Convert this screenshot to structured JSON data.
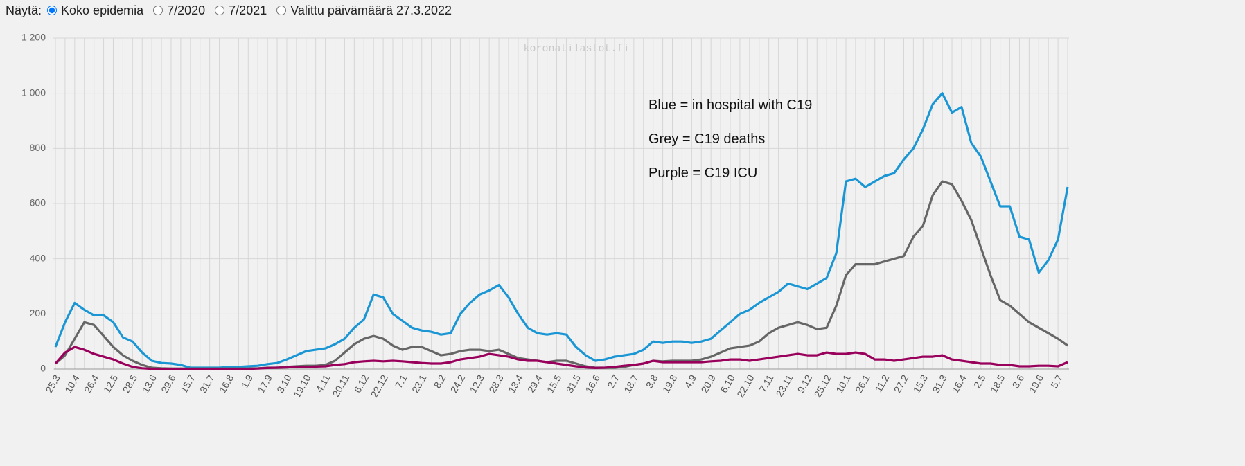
{
  "controls": {
    "label": "Näytä:",
    "options": [
      "Koko epidemia",
      "7/2020",
      "7/2021",
      "Valittu päivämäärä 27.3.2022"
    ],
    "selected": 0
  },
  "chart_data": {
    "type": "line",
    "watermark": "koronatilastot.fi",
    "annotations": [
      "Blue = in hospital with C19",
      "Grey = C19 deaths",
      "Purple = C19 ICU"
    ],
    "categories": [
      "25.3",
      null,
      "10.4",
      null,
      "26.4",
      null,
      "12.5",
      null,
      "28.5",
      null,
      "13.6",
      null,
      "29.6",
      null,
      "15.7",
      null,
      "31.7",
      null,
      "16.8",
      null,
      "1.9",
      null,
      "17.9",
      null,
      "3.10",
      null,
      "19.10",
      null,
      "4.11",
      null,
      "20.11",
      null,
      "6.12",
      null,
      "22.12",
      null,
      "7.1",
      null,
      "23.1",
      null,
      "8.2",
      null,
      "24.2",
      null,
      "12.3",
      null,
      "28.3",
      null,
      "13.4",
      null,
      "29.4",
      null,
      "15.5",
      null,
      "31.5",
      null,
      "16.6",
      null,
      "2.7",
      null,
      "18.7",
      null,
      "3.8",
      null,
      "19.8",
      null,
      "4.9",
      null,
      "20.9",
      null,
      "6.10",
      null,
      "22.10",
      null,
      "7.11",
      null,
      "23.11",
      null,
      "9.12",
      null,
      "25.12",
      null,
      "10.1",
      null,
      "26.1",
      null,
      "11.2",
      null,
      "27.2",
      null,
      "15.3",
      null,
      "31.3",
      null,
      "16.4",
      null,
      "2.5",
      null,
      "18.5",
      null,
      "3.6",
      null,
      "19.6",
      null,
      "5.7",
      null
    ],
    "series": [
      {
        "color": "#1a96d4",
        "values": [
          80,
          170,
          240,
          215,
          195,
          195,
          170,
          115,
          100,
          60,
          30,
          22,
          20,
          15,
          5,
          5,
          5,
          5,
          8,
          8,
          10,
          12,
          18,
          22,
          35,
          50,
          65,
          70,
          75,
          90,
          110,
          150,
          180,
          270,
          260,
          200,
          175,
          150,
          140,
          135,
          125,
          130,
          200,
          240,
          270,
          285,
          305,
          260,
          200,
          150,
          130,
          125,
          130,
          125,
          80,
          50,
          30,
          35,
          45,
          50,
          55,
          70,
          100,
          95,
          100,
          100,
          95,
          100,
          110,
          140,
          170,
          200,
          215,
          240,
          260,
          280,
          310,
          300,
          290,
          310,
          330,
          420,
          680,
          690,
          660,
          680,
          700,
          710,
          760,
          800,
          870,
          960,
          1000,
          930,
          950,
          820,
          770,
          680,
          590,
          590,
          480,
          470,
          350,
          395,
          470,
          660
        ]
      },
      {
        "color": "#666666",
        "values": [
          20,
          50,
          110,
          170,
          160,
          120,
          80,
          50,
          30,
          15,
          5,
          3,
          2,
          2,
          2,
          2,
          2,
          2,
          2,
          2,
          2,
          3,
          5,
          5,
          8,
          10,
          12,
          12,
          15,
          30,
          60,
          90,
          110,
          120,
          110,
          85,
          70,
          80,
          80,
          65,
          50,
          55,
          65,
          70,
          70,
          65,
          70,
          55,
          40,
          35,
          30,
          25,
          30,
          30,
          20,
          10,
          5,
          5,
          5,
          8,
          15,
          20,
          30,
          28,
          30,
          30,
          30,
          35,
          45,
          60,
          75,
          80,
          85,
          100,
          130,
          150,
          160,
          170,
          160,
          145,
          150,
          230,
          340,
          380,
          380,
          380,
          390,
          400,
          410,
          480,
          520,
          630,
          680,
          670,
          610,
          540,
          440,
          340,
          250,
          230,
          200,
          170,
          150,
          130,
          110,
          85
        ]
      },
      {
        "color": "#99005c",
        "values": [
          20,
          60,
          80,
          70,
          55,
          45,
          35,
          20,
          8,
          3,
          1,
          1,
          1,
          1,
          1,
          1,
          1,
          1,
          1,
          1,
          1,
          2,
          4,
          5,
          6,
          8,
          8,
          9,
          10,
          15,
          18,
          25,
          28,
          30,
          28,
          30,
          28,
          25,
          22,
          20,
          20,
          25,
          35,
          40,
          45,
          55,
          50,
          45,
          35,
          30,
          30,
          25,
          20,
          15,
          10,
          6,
          4,
          5,
          8,
          12,
          15,
          20,
          30,
          25,
          25,
          25,
          25,
          25,
          28,
          30,
          35,
          35,
          30,
          35,
          40,
          45,
          50,
          55,
          50,
          50,
          60,
          55,
          55,
          60,
          55,
          35,
          35,
          30,
          35,
          40,
          45,
          45,
          50,
          35,
          30,
          25,
          20,
          20,
          15,
          15,
          10,
          10,
          12,
          12,
          10,
          25
        ]
      }
    ],
    "ylim": [
      0,
      1200
    ],
    "yticks": [
      0,
      200,
      400,
      600,
      800,
      {
        "value": 1000,
        "label": "1 000"
      },
      {
        "value": 1200,
        "label": "1 200"
      }
    ],
    "grid": true
  }
}
